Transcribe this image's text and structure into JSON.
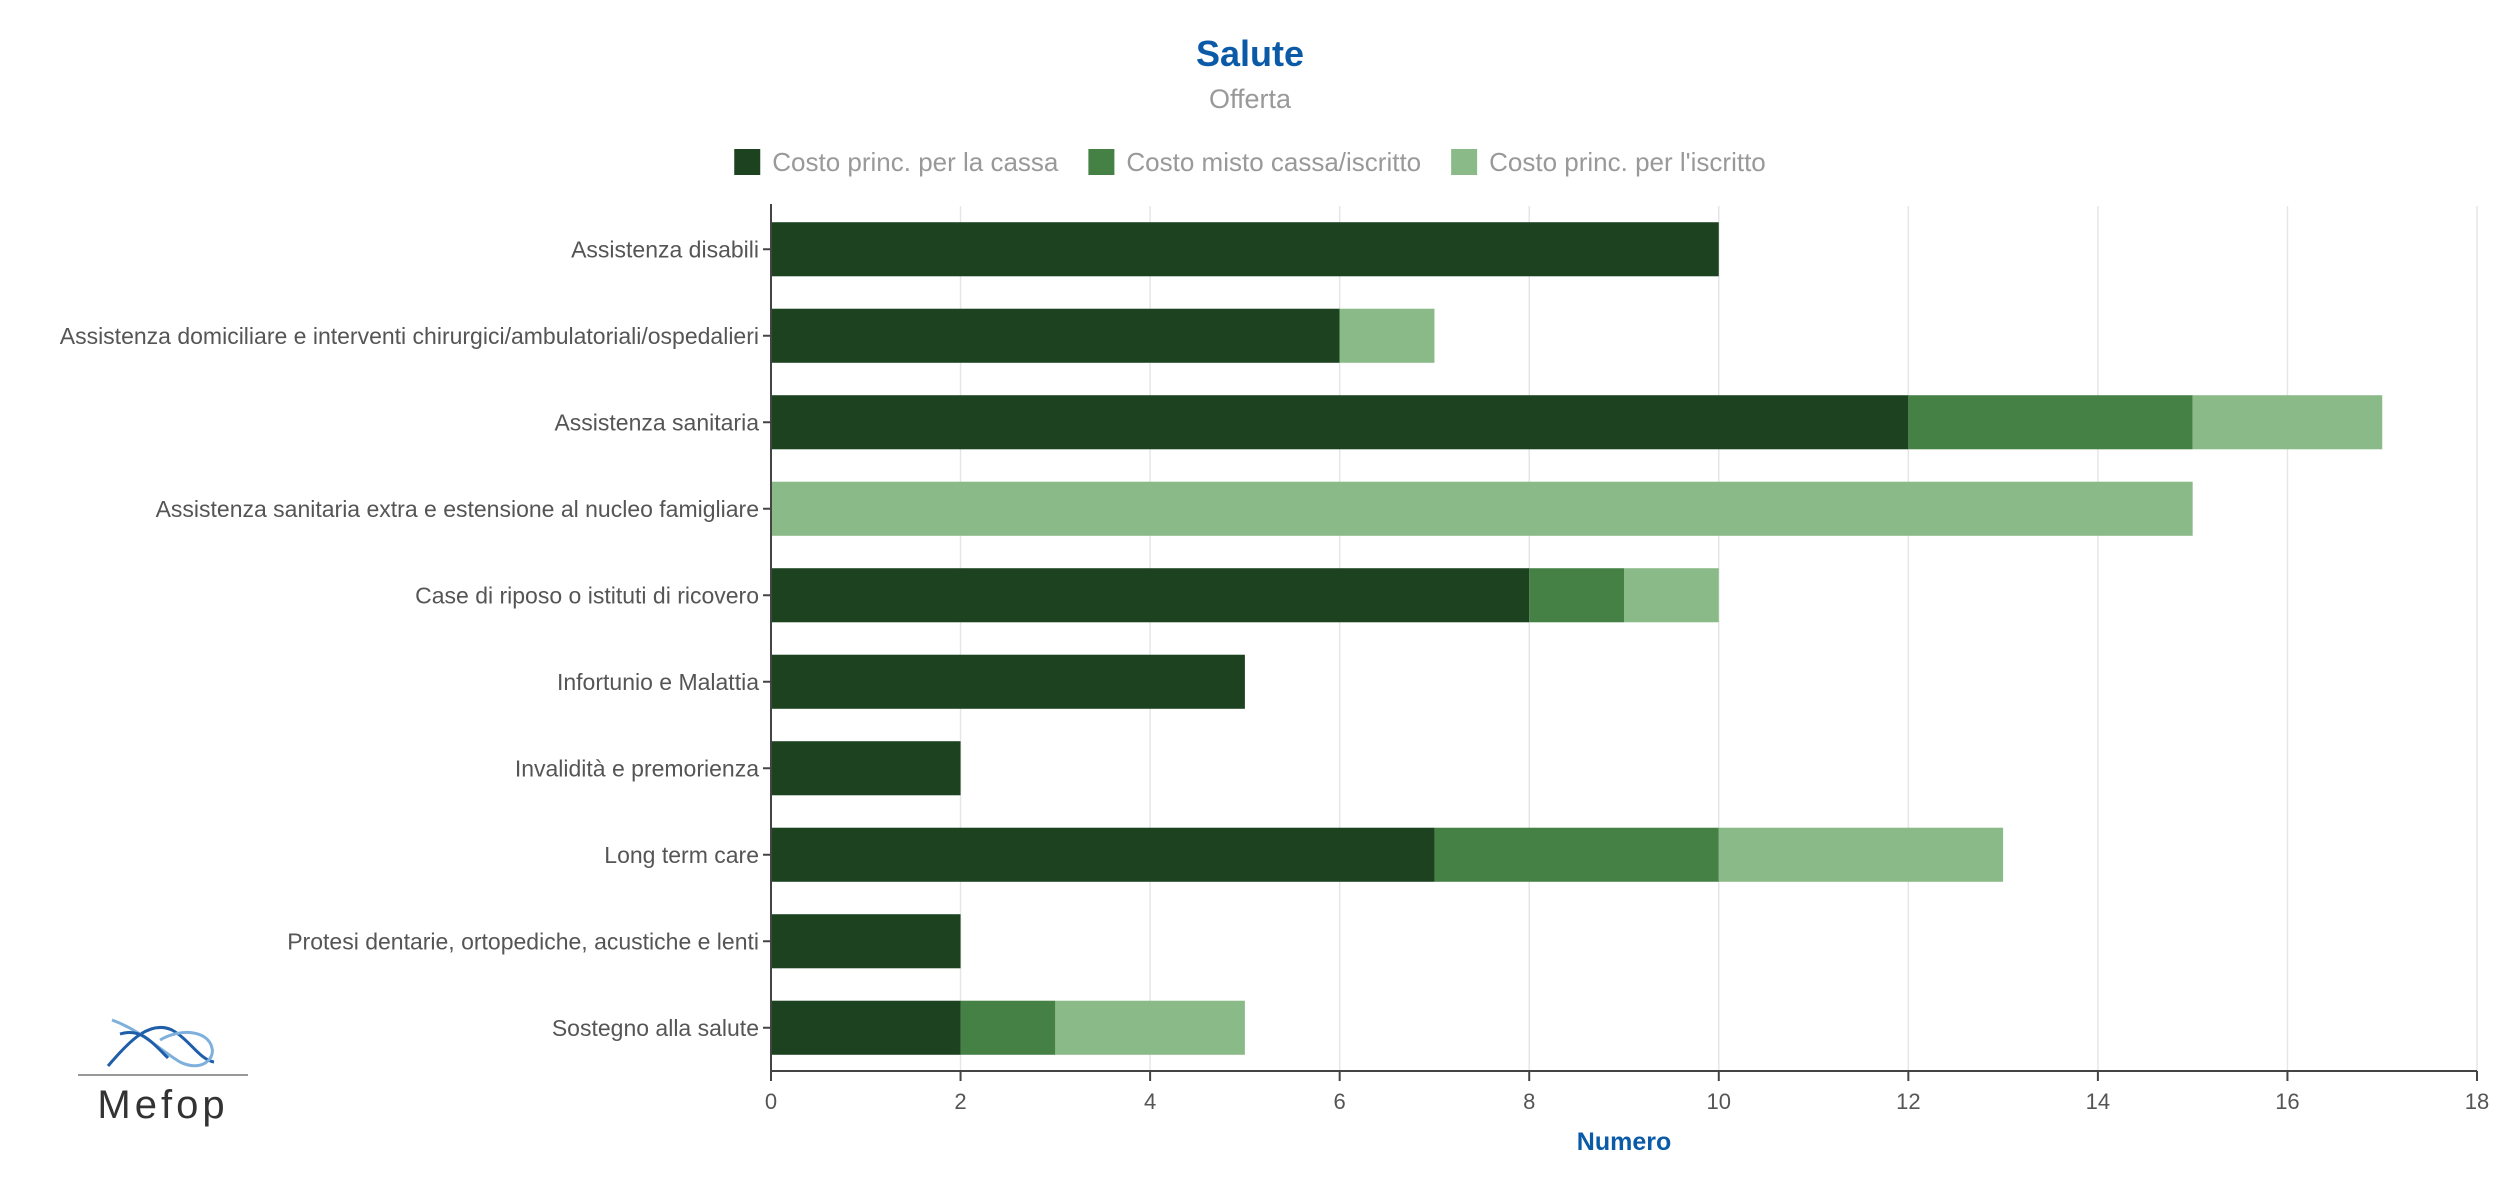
{
  "chart_data": {
    "type": "bar",
    "orientation": "horizontal",
    "stacked": true,
    "title": "Salute",
    "subtitle": "Offerta",
    "xlabel": "Numero",
    "ylabel": "",
    "xlim": [
      0,
      18
    ],
    "xticks": [
      0,
      2,
      4,
      6,
      8,
      10,
      12,
      14,
      16,
      18
    ],
    "grid": true,
    "legend_position": "top-center",
    "categories": [
      "Assistenza disabili",
      "Assistenza domiciliare e interventi chirurgici/ambulatoriali/ospedalieri",
      "Assistenza sanitaria",
      "Assistenza sanitaria extra e estensione al nucleo famigliare",
      "Case di riposo o istituti di ricovero",
      "Infortunio e Malattia",
      "Invalidità e premorienza",
      "Long term care",
      "Protesi dentarie, ortopediche, acustiche e lenti",
      "Sostegno alla salute"
    ],
    "series": [
      {
        "name": "Costo princ. per la cassa",
        "color": "#1c4220",
        "values": [
          10,
          6,
          12,
          0,
          8,
          5,
          2,
          7,
          2,
          2
        ]
      },
      {
        "name": "Costo misto cassa/iscritto",
        "color": "#458045",
        "values": [
          0,
          0,
          3,
          0,
          1,
          0,
          0,
          3,
          0,
          1
        ]
      },
      {
        "name": "Costo princ. per l'iscritto",
        "color": "#8aba87",
        "values": [
          0,
          1,
          2,
          15,
          1,
          0,
          0,
          3,
          0,
          2
        ]
      }
    ]
  },
  "logo": {
    "text": "Mefop",
    "icon": "mefop-logo-icon"
  }
}
